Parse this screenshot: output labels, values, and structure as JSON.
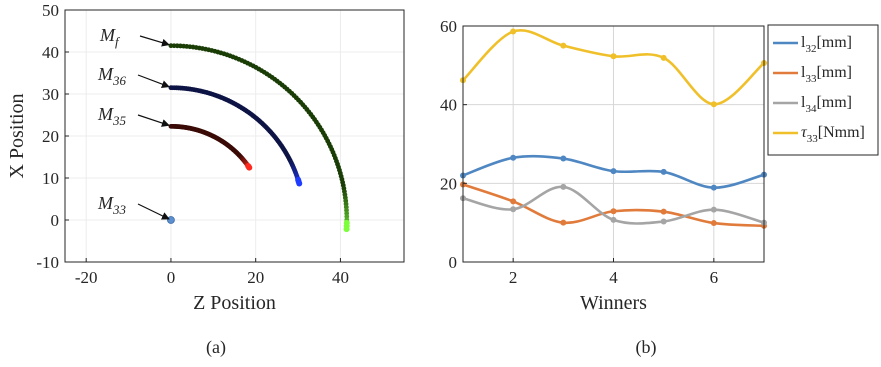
{
  "chart_data": [
    {
      "type": "scatter",
      "caption": "(a)",
      "xlabel": "Z Position",
      "ylabel": "X Position",
      "xlim": [
        -25,
        55
      ],
      "ylim": [
        -10,
        50
      ],
      "xticks": [
        "-20",
        "0",
        "20",
        "40"
      ],
      "xtick_values": [
        -20,
        0,
        20,
        40
      ],
      "yticks": [
        "-10",
        "0",
        "10",
        "20",
        "30",
        "40",
        "50"
      ],
      "ytick_values": [
        -10,
        0,
        10,
        20,
        30,
        40,
        50
      ],
      "grid": true,
      "series": [
        {
          "label_main": "M",
          "label_sub": "f",
          "radius": 41.5,
          "start_deg": 90,
          "end_deg": -3,
          "color": "#1a3d06",
          "end_color": "#7cff3a"
        },
        {
          "label_main": "M",
          "label_sub": "36",
          "radius": 31.5,
          "start_deg": 90,
          "end_deg": 16,
          "color": "#0d1445",
          "end_color": "#1f3cff"
        },
        {
          "label_main": "M",
          "label_sub": "35",
          "radius": 22.3,
          "start_deg": 90,
          "end_deg": 34,
          "color": "#3a0a06",
          "end_color": "#ff2a1f"
        },
        {
          "label_main": "M",
          "label_sub": "33",
          "radius": 0,
          "point": [
            0,
            0
          ],
          "color": "#5b8fd0"
        }
      ]
    },
    {
      "type": "line",
      "caption": "(b)",
      "xlabel": "Winners",
      "ylabel": "",
      "xlim": [
        1,
        7
      ],
      "ylim": [
        0,
        60
      ],
      "xticks": [
        "2",
        "4",
        "6"
      ],
      "xtick_values": [
        2,
        4,
        6
      ],
      "yticks": [
        "0",
        "20",
        "40",
        "60"
      ],
      "ytick_values": [
        0,
        20,
        40,
        60
      ],
      "grid": true,
      "legend_position": "right",
      "x": [
        1,
        2,
        3,
        4,
        5,
        6,
        7
      ],
      "series": [
        {
          "name_main": "l",
          "name_sub": "32",
          "name_unit": "[mm]",
          "color": "#4f87c2",
          "values": [
            22,
            26.5,
            26.3,
            23.1,
            22.9,
            18.9,
            22.2
          ]
        },
        {
          "name_main": "l",
          "name_sub": "33",
          "name_unit": "[mm]",
          "color": "#e07b3c",
          "values": [
            19.7,
            15.4,
            10,
            12.9,
            12.8,
            9.9,
            9.2
          ]
        },
        {
          "name_main": "l",
          "name_sub": "34",
          "name_unit": "[mm]",
          "color": "#a5a5a5",
          "values": [
            16.2,
            13.4,
            19.1,
            10.7,
            10.3,
            13.3,
            10
          ]
        },
        {
          "name_main": "τ",
          "name_sub": "33",
          "name_unit": "[Nmm]",
          "color": "#f0c02b",
          "values": [
            46.2,
            58.6,
            55,
            52.3,
            51.9,
            40.1,
            50.6
          ]
        }
      ]
    }
  ]
}
